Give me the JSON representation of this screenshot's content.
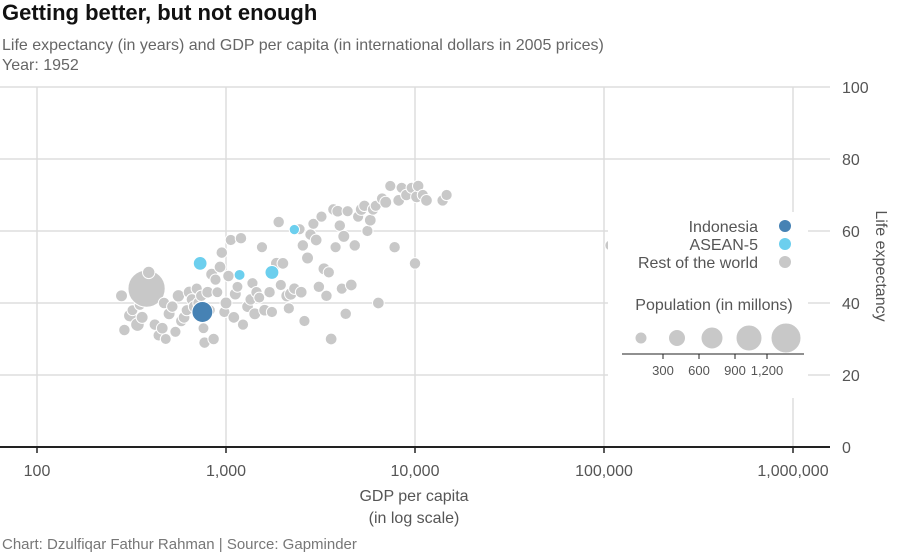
{
  "chart_data": {
    "type": "scatter",
    "title": "Getting better, but not enough",
    "subtitle": "Life expectancy (in years) and GDP per capita (in international dollars in 2005 prices)",
    "year_label": "Year: 1952",
    "caption": "Chart: Dzulfiqar Fathur Rahman | Source: Gapminder",
    "xlabel_line1": "GDP per capita",
    "xlabel_line2": "(in log scale)",
    "ylabel": "Life expectancy",
    "x_scale": "log",
    "xlim": [
      100,
      1000000
    ],
    "ylim": [
      0,
      100
    ],
    "x_ticks": [
      {
        "value": 100,
        "label": "100"
      },
      {
        "value": 1000,
        "label": "1,000"
      },
      {
        "value": 10000,
        "label": "10,000"
      },
      {
        "value": 100000,
        "label": "100,000"
      },
      {
        "value": 1000000,
        "label": "1,000,000"
      }
    ],
    "y_ticks": [
      {
        "value": 0,
        "label": "0"
      },
      {
        "value": 20,
        "label": "20"
      },
      {
        "value": 40,
        "label": "40"
      },
      {
        "value": 60,
        "label": "60"
      },
      {
        "value": 80,
        "label": "80"
      },
      {
        "value": 100,
        "label": "100"
      }
    ],
    "grid": true,
    "legend_position": "right",
    "legend": [
      {
        "name": "Indonesia",
        "color": "#4682b4"
      },
      {
        "name": "ASEAN-5",
        "color": "#6ccfee"
      },
      {
        "name": "Rest of the world",
        "color": "#c8c8c8"
      }
    ],
    "size_legend": {
      "title": "Population (in millons)",
      "values": [
        300,
        600,
        900,
        1200
      ]
    },
    "series": [
      {
        "name": "Indonesia",
        "color": "#4682b4",
        "points": [
          {
            "x": 750,
            "y": 37.5,
            "pop": 82
          }
        ]
      },
      {
        "name": "ASEAN-5",
        "color": "#6ccfee",
        "points": [
          {
            "x": 2300,
            "y": 60.4,
            "pop": 6
          },
          {
            "x": 730,
            "y": 51.0,
            "pop": 21
          },
          {
            "x": 1180,
            "y": 47.8,
            "pop": 8
          },
          {
            "x": 1750,
            "y": 48.5,
            "pop": 22
          }
        ]
      },
      {
        "name": "Rest of the world",
        "color": "#c8c8c8",
        "points": [
          {
            "x": 280,
            "y": 42,
            "pop": 12
          },
          {
            "x": 290,
            "y": 32.5,
            "pop": 10
          },
          {
            "x": 310,
            "y": 36.5,
            "pop": 15
          },
          {
            "x": 320,
            "y": 38,
            "pop": 8
          },
          {
            "x": 340,
            "y": 34,
            "pop": 20
          },
          {
            "x": 350,
            "y": 39.5,
            "pop": 9
          },
          {
            "x": 360,
            "y": 36,
            "pop": 12
          },
          {
            "x": 380,
            "y": 44,
            "pop": 372
          },
          {
            "x": 390,
            "y": 48.5,
            "pop": 14
          },
          {
            "x": 420,
            "y": 34,
            "pop": 10
          },
          {
            "x": 440,
            "y": 31,
            "pop": 9
          },
          {
            "x": 460,
            "y": 33,
            "pop": 11
          },
          {
            "x": 470,
            "y": 40,
            "pop": 10
          },
          {
            "x": 480,
            "y": 30,
            "pop": 8
          },
          {
            "x": 500,
            "y": 37,
            "pop": 12
          },
          {
            "x": 520,
            "y": 39,
            "pop": 10
          },
          {
            "x": 540,
            "y": 32,
            "pop": 9
          },
          {
            "x": 560,
            "y": 42,
            "pop": 14
          },
          {
            "x": 580,
            "y": 35,
            "pop": 10
          },
          {
            "x": 600,
            "y": 36,
            "pop": 11
          },
          {
            "x": 620,
            "y": 38,
            "pop": 9
          },
          {
            "x": 640,
            "y": 43,
            "pop": 13
          },
          {
            "x": 660,
            "y": 41,
            "pop": 10
          },
          {
            "x": 680,
            "y": 39,
            "pop": 12
          },
          {
            "x": 700,
            "y": 44,
            "pop": 9
          },
          {
            "x": 720,
            "y": 40,
            "pop": 14
          },
          {
            "x": 740,
            "y": 42,
            "pop": 10
          },
          {
            "x": 760,
            "y": 33,
            "pop": 8
          },
          {
            "x": 770,
            "y": 29,
            "pop": 10
          },
          {
            "x": 800,
            "y": 43,
            "pop": 11
          },
          {
            "x": 820,
            "y": 38,
            "pop": 9
          },
          {
            "x": 840,
            "y": 48,
            "pop": 12
          },
          {
            "x": 860,
            "y": 30,
            "pop": 10
          },
          {
            "x": 880,
            "y": 46.5,
            "pop": 9
          },
          {
            "x": 900,
            "y": 43,
            "pop": 8
          },
          {
            "x": 930,
            "y": 50,
            "pop": 11
          },
          {
            "x": 950,
            "y": 54,
            "pop": 10
          },
          {
            "x": 980,
            "y": 37.5,
            "pop": 9
          },
          {
            "x": 1000,
            "y": 40,
            "pop": 12
          },
          {
            "x": 1030,
            "y": 47.5,
            "pop": 10
          },
          {
            "x": 1060,
            "y": 57.5,
            "pop": 9
          },
          {
            "x": 1100,
            "y": 36,
            "pop": 11
          },
          {
            "x": 1120,
            "y": 42.5,
            "pop": 12
          },
          {
            "x": 1150,
            "y": 44.5,
            "pop": 8
          },
          {
            "x": 1200,
            "y": 58,
            "pop": 10
          },
          {
            "x": 1230,
            "y": 34,
            "pop": 9
          },
          {
            "x": 1300,
            "y": 39,
            "pop": 11
          },
          {
            "x": 1350,
            "y": 41,
            "pop": 10
          },
          {
            "x": 1380,
            "y": 45.5,
            "pop": 9
          },
          {
            "x": 1420,
            "y": 37,
            "pop": 12
          },
          {
            "x": 1450,
            "y": 43,
            "pop": 10
          },
          {
            "x": 1500,
            "y": 41.5,
            "pop": 8
          },
          {
            "x": 1550,
            "y": 55.5,
            "pop": 9
          },
          {
            "x": 1600,
            "y": 38,
            "pop": 11
          },
          {
            "x": 1700,
            "y": 43,
            "pop": 10
          },
          {
            "x": 1750,
            "y": 37.5,
            "pop": 9
          },
          {
            "x": 1850,
            "y": 51,
            "pop": 12
          },
          {
            "x": 1900,
            "y": 62.5,
            "pop": 10
          },
          {
            "x": 1950,
            "y": 45,
            "pop": 9
          },
          {
            "x": 2000,
            "y": 51,
            "pop": 11
          },
          {
            "x": 2100,
            "y": 42,
            "pop": 13
          },
          {
            "x": 2150,
            "y": 38.5,
            "pop": 9
          },
          {
            "x": 2200,
            "y": 42.5,
            "pop": 14
          },
          {
            "x": 2300,
            "y": 44,
            "pop": 10
          },
          {
            "x": 2450,
            "y": 60.5,
            "pop": 9
          },
          {
            "x": 2500,
            "y": 43,
            "pop": 11
          },
          {
            "x": 2550,
            "y": 56,
            "pop": 10
          },
          {
            "x": 2600,
            "y": 35,
            "pop": 9
          },
          {
            "x": 2700,
            "y": 52.5,
            "pop": 12
          },
          {
            "x": 2800,
            "y": 59,
            "pop": 10
          },
          {
            "x": 2900,
            "y": 62,
            "pop": 9
          },
          {
            "x": 3000,
            "y": 57.5,
            "pop": 11
          },
          {
            "x": 3100,
            "y": 44.5,
            "pop": 10
          },
          {
            "x": 3200,
            "y": 64,
            "pop": 9
          },
          {
            "x": 3300,
            "y": 49.5,
            "pop": 12
          },
          {
            "x": 3400,
            "y": 42,
            "pop": 10
          },
          {
            "x": 3500,
            "y": 48.5,
            "pop": 9
          },
          {
            "x": 3600,
            "y": 30,
            "pop": 11
          },
          {
            "x": 3700,
            "y": 66,
            "pop": 10
          },
          {
            "x": 3800,
            "y": 55.5,
            "pop": 9
          },
          {
            "x": 3900,
            "y": 65.5,
            "pop": 11
          },
          {
            "x": 4000,
            "y": 61.5,
            "pop": 10
          },
          {
            "x": 4100,
            "y": 44,
            "pop": 9
          },
          {
            "x": 4200,
            "y": 58.5,
            "pop": 12
          },
          {
            "x": 4300,
            "y": 37,
            "pop": 10
          },
          {
            "x": 4400,
            "y": 65.5,
            "pop": 9
          },
          {
            "x": 4600,
            "y": 45,
            "pop": 11
          },
          {
            "x": 4800,
            "y": 56,
            "pop": 10
          },
          {
            "x": 5000,
            "y": 64,
            "pop": 9
          },
          {
            "x": 5200,
            "y": 66,
            "pop": 12
          },
          {
            "x": 5400,
            "y": 67,
            "pop": 10
          },
          {
            "x": 5600,
            "y": 60,
            "pop": 9
          },
          {
            "x": 5800,
            "y": 63,
            "pop": 11
          },
          {
            "x": 6000,
            "y": 66,
            "pop": 10
          },
          {
            "x": 6200,
            "y": 67,
            "pop": 9
          },
          {
            "x": 6400,
            "y": 40,
            "pop": 11
          },
          {
            "x": 6700,
            "y": 69,
            "pop": 10
          },
          {
            "x": 7000,
            "y": 68,
            "pop": 12
          },
          {
            "x": 7400,
            "y": 72.5,
            "pop": 9
          },
          {
            "x": 7800,
            "y": 55.5,
            "pop": 10
          },
          {
            "x": 8200,
            "y": 68.5,
            "pop": 11
          },
          {
            "x": 8500,
            "y": 72,
            "pop": 9
          },
          {
            "x": 9000,
            "y": 70,
            "pop": 10
          },
          {
            "x": 9600,
            "y": 72,
            "pop": 9
          },
          {
            "x": 10000,
            "y": 51,
            "pop": 10
          },
          {
            "x": 10200,
            "y": 69.5,
            "pop": 12
          },
          {
            "x": 10400,
            "y": 72.5,
            "pop": 10
          },
          {
            "x": 11000,
            "y": 70,
            "pop": 9
          },
          {
            "x": 11500,
            "y": 68.5,
            "pop": 11
          },
          {
            "x": 14000,
            "y": 68.5,
            "pop": 10
          },
          {
            "x": 14700,
            "y": 70,
            "pop": 9
          },
          {
            "x": 108000,
            "y": 56,
            "pop": 8
          }
        ]
      }
    ]
  }
}
